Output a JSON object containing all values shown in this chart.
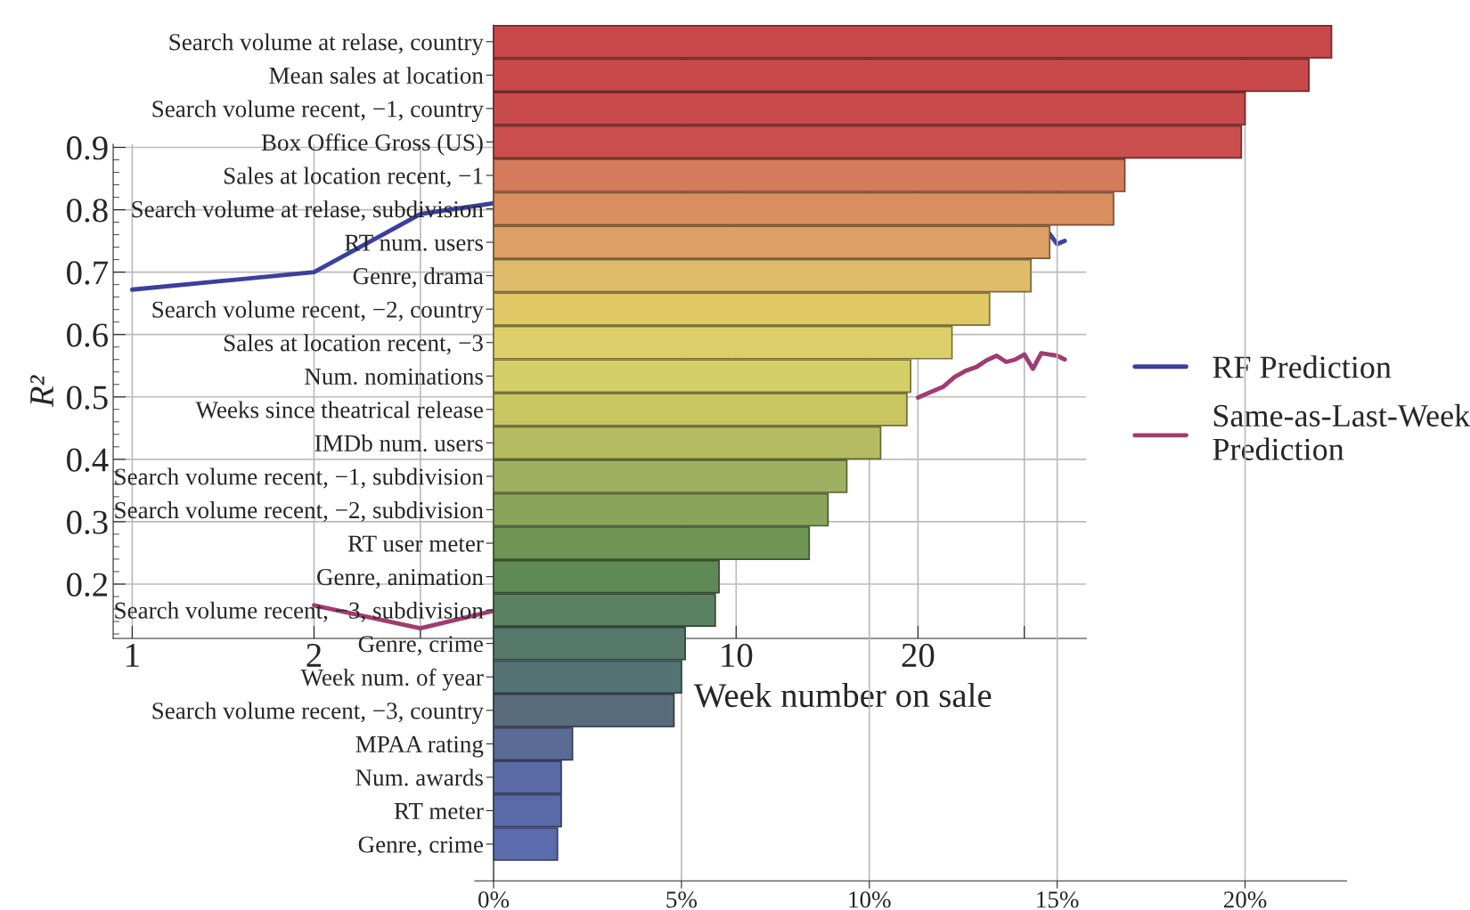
{
  "chart_data": [
    {
      "type": "line",
      "xlabel": "Week number on sale",
      "ylabel": "R²",
      "log": "x",
      "xlim": [
        0.93,
        38
      ],
      "ylim": [
        0.113,
        0.905
      ],
      "xticks": [
        1,
        2,
        {
          "value": 3,
          "label": null
        },
        10,
        20,
        {
          "value": 30,
          "label": null
        }
      ],
      "yticks": [
        0.2,
        0.3,
        0.4,
        0.5,
        0.6,
        0.7,
        0.8,
        0.9
      ],
      "grid": true,
      "legend": "right",
      "series": [
        {
          "name": "RF Prediction",
          "color": "#3b3f9e",
          "x": [
            1,
            2,
            3,
            4,
            5,
            33,
            34,
            35
          ],
          "values": [
            0.672,
            0.7,
            0.793,
            0.811,
            null,
            0.762,
            0.745,
            0.75
          ]
        },
        {
          "name": "Same-as-Last-Week Prediction",
          "color": "#a03c72",
          "x": [
            2,
            3,
            4,
            5,
            20,
            21,
            22,
            23,
            24,
            25,
            26,
            27,
            28,
            29,
            30,
            31,
            32,
            33,
            34,
            35
          ],
          "values": [
            0.166,
            0.129,
            0.158,
            null,
            0.499,
            0.508,
            0.516,
            0.532,
            0.542,
            0.548,
            0.559,
            0.566,
            0.556,
            0.56,
            0.568,
            0.545,
            0.57,
            0.568,
            0.566,
            0.56
          ]
        }
      ]
    },
    {
      "type": "bar",
      "orientation": "horizontal",
      "xlim": [
        -0.5,
        22.7
      ],
      "xticks": [
        {
          "value": 0,
          "label": "0%"
        },
        {
          "value": 5,
          "label": "5%"
        },
        {
          "value": 10,
          "label": "10%"
        },
        {
          "value": 15,
          "label": "15%"
        },
        {
          "value": 20,
          "label": "20%"
        }
      ],
      "grid": "x",
      "categories": [
        "Search volume at relase, country",
        "Mean sales at location",
        "Search volume recent, −1, country",
        "Box Office Gross (US)",
        "Sales at location recent, −1",
        "Search volume at relase, subdivision",
        "RT num. users",
        "Genre, drama",
        "Search volume recent, −2, country",
        "Sales at location recent, −3",
        "Num. nominations",
        "Weeks since theatrical release",
        "IMDb num. users",
        "Search volume recent, −1, subdivision",
        "Search volume recent, −2, subdivision",
        "RT user meter",
        "Genre, animation",
        "Search volume recent, −3, subdivision",
        "Genre, crime",
        "Week num. of year",
        "Search volume recent, −3, country",
        "MPAA rating",
        "Num. awards",
        "RT meter",
        "Genre, crime"
      ],
      "values": [
        22.3,
        21.7,
        20.0,
        19.9,
        16.8,
        16.5,
        14.8,
        14.3,
        13.2,
        12.2,
        11.1,
        11.0,
        10.3,
        9.4,
        8.9,
        8.4,
        6.0,
        5.9,
        5.1,
        5.0,
        4.8,
        2.1,
        1.8,
        1.8,
        1.7
      ],
      "colors": [
        "#c8474a",
        "#c9494b",
        "#ca4b4c",
        "#cb4e4e",
        "#d57a5a",
        "#d88e5e",
        "#dca064",
        "#e0bb6a",
        "#e0c865",
        "#dccf6a",
        "#d6cf68",
        "#c9c563",
        "#b5bb60",
        "#9fb060",
        "#88a55a",
        "#6e9553",
        "#5f8a55",
        "#5a8260",
        "#56786a",
        "#557274",
        "#586c7c",
        "#5a6b95",
        "#5a6aa5",
        "#5a6aa8",
        "#5b6bab"
      ]
    }
  ]
}
